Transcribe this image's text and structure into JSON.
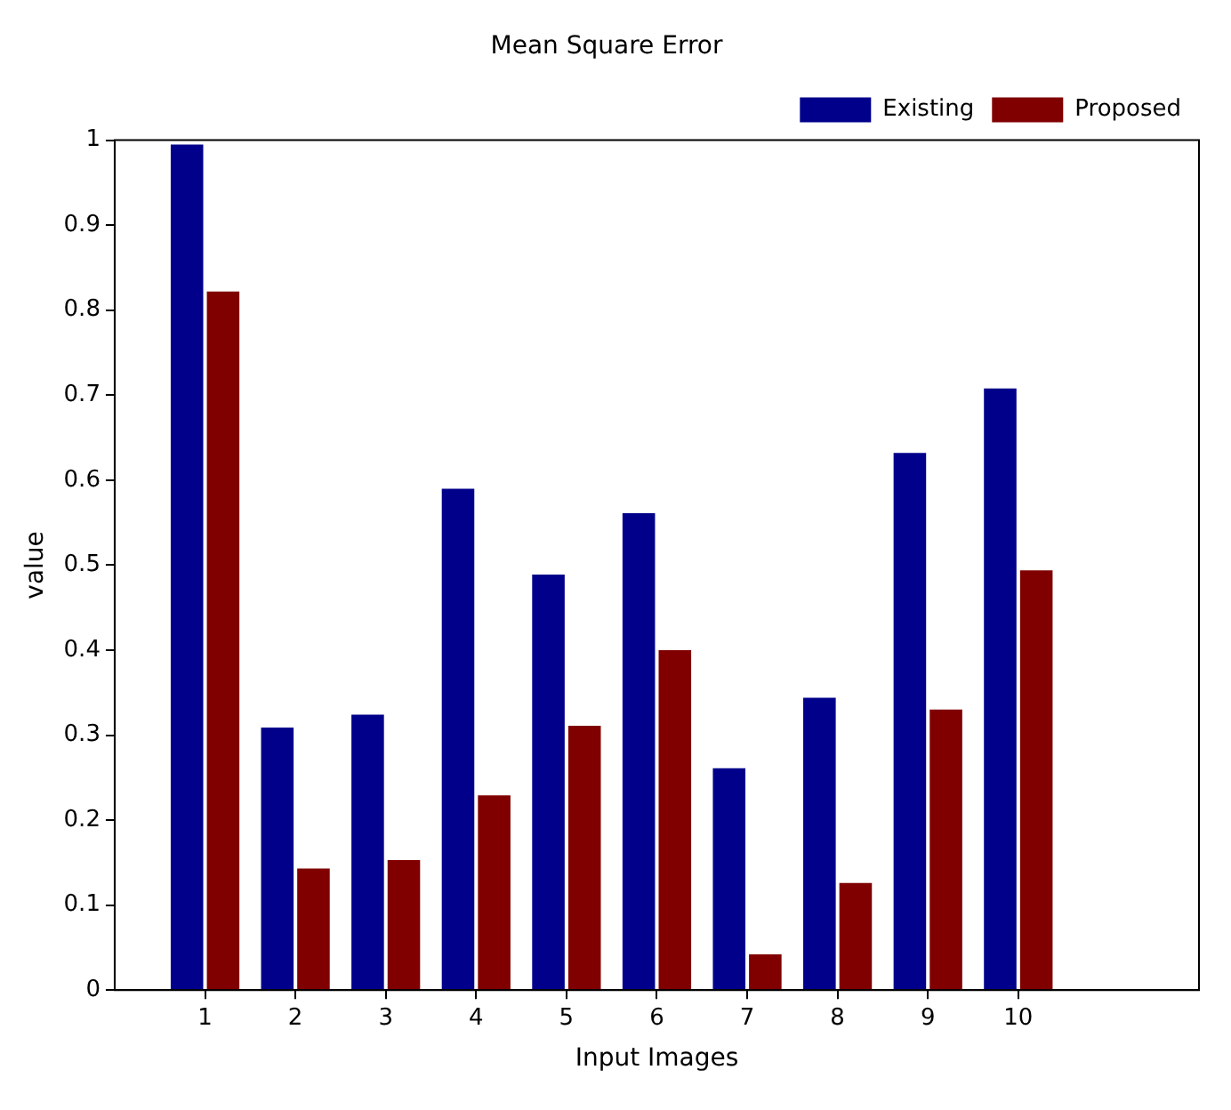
{
  "chart_data": {
    "type": "bar",
    "title": "Mean Square Error",
    "xlabel": "Input Images",
    "ylabel": "value",
    "x": [
      1,
      2,
      3,
      4,
      5,
      6,
      7,
      8,
      9,
      10
    ],
    "series": [
      {
        "name": "Existing",
        "color": "#00008b",
        "values": [
          0.995,
          0.309,
          0.324,
          0.59,
          0.489,
          0.561,
          0.261,
          0.344,
          0.632,
          0.708
        ]
      },
      {
        "name": "Proposed",
        "color": "#800000",
        "values": [
          0.822,
          0.143,
          0.153,
          0.229,
          0.311,
          0.4,
          0.042,
          0.126,
          0.33,
          0.494
        ]
      }
    ],
    "xlim": [
      0,
      12
    ],
    "xticks": [
      1,
      2,
      3,
      4,
      5,
      6,
      7,
      8,
      9,
      10
    ],
    "ylim": [
      0,
      1
    ],
    "yticks": [
      0,
      0.1,
      0.2,
      0.3,
      0.4,
      0.5,
      0.6,
      0.7,
      0.8,
      0.9,
      1
    ],
    "grid": false,
    "legend": "top right"
  }
}
